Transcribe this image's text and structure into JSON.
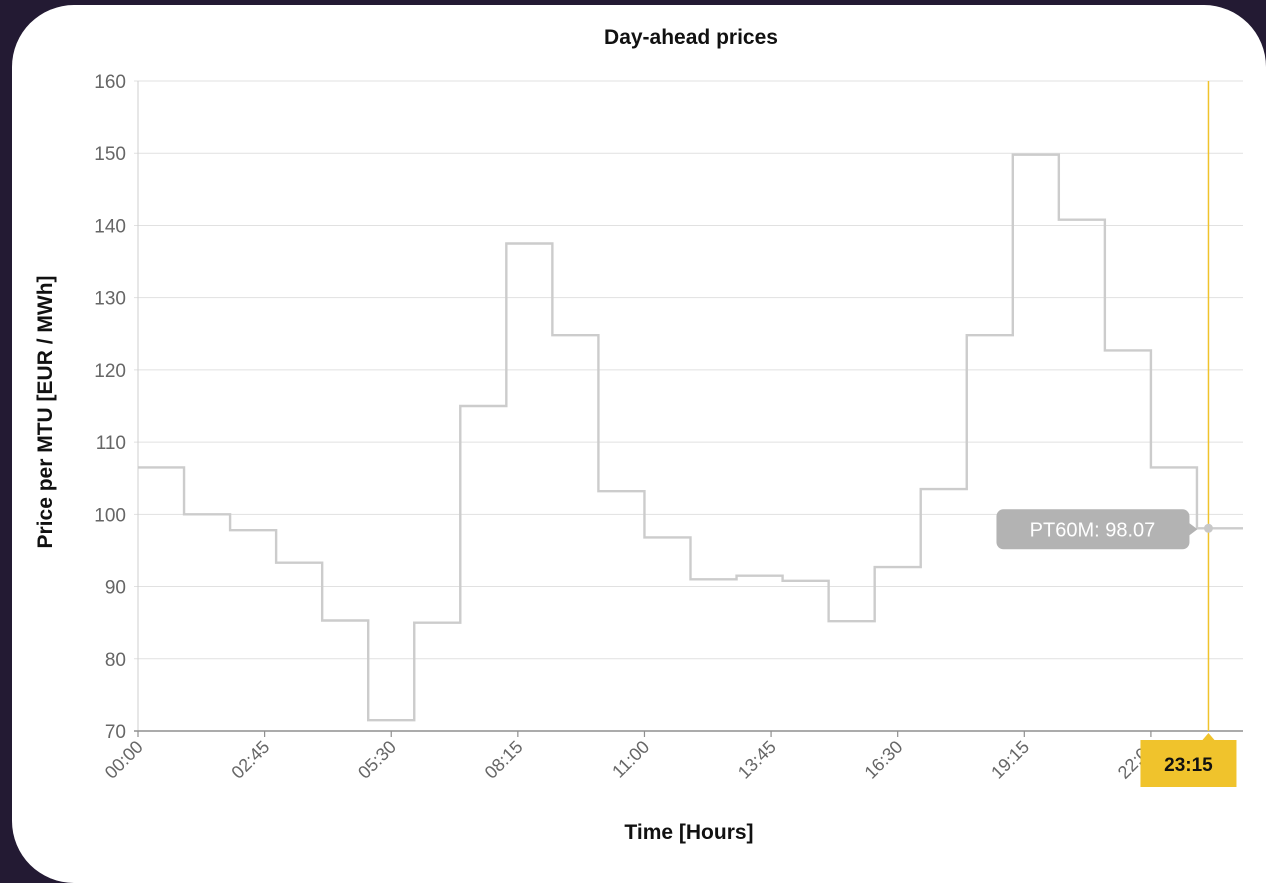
{
  "chart_data": {
    "type": "line",
    "step": true,
    "title": "Day-ahead prices",
    "xlabel": "Time [Hours]",
    "ylabel": "Price per MTU [EUR / MWh]",
    "ylim": [
      70,
      160
    ],
    "yticks": [
      70,
      80,
      90,
      100,
      110,
      120,
      130,
      140,
      150,
      160
    ],
    "xlim_hours": [
      0,
      24
    ],
    "xtick_labels": [
      "00:00",
      "02:45",
      "05:30",
      "08:15",
      "11:00",
      "13:45",
      "16:30",
      "19:15",
      "22:00"
    ],
    "grid": true,
    "series": [
      {
        "x": [
          "00:00",
          "01:00",
          "02:00",
          "03:00",
          "04:00",
          "05:00",
          "06:00",
          "07:00",
          "08:00",
          "09:00",
          "10:00",
          "11:00",
          "12:00",
          "13:00",
          "14:00",
          "15:00",
          "16:00",
          "17:00",
          "18:00",
          "19:00",
          "20:00",
          "21:00",
          "22:00",
          "23:00"
        ],
        "values": [
          106.5,
          100.0,
          97.8,
          93.3,
          85.3,
          71.5,
          85.0,
          115.0,
          137.5,
          124.8,
          103.2,
          96.8,
          91.0,
          91.5,
          90.8,
          85.2,
          92.7,
          103.5,
          124.8,
          149.8,
          140.8,
          122.7,
          106.5,
          98.07
        ]
      }
    ],
    "tooltip": {
      "label": "PT60M: 98.07",
      "series": "PT60M",
      "value": 98.07
    },
    "crosshair": {
      "label": "23:15"
    },
    "colors": {
      "line": "#cccccc",
      "crosshair": "#f0c32c",
      "tooltip_bg": "#b3b3b3"
    }
  }
}
